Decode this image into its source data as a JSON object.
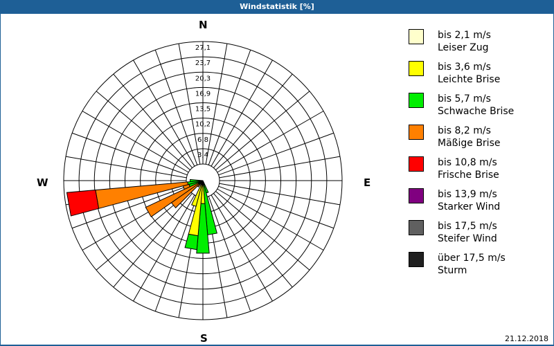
{
  "window": {
    "title": "Windstatistik [%]",
    "date": "21.12.2018"
  },
  "compass": {
    "n": "N",
    "e": "E",
    "s": "S",
    "w": "W"
  },
  "legend": {
    "items": [
      {
        "range": "bis 2,1 m/s",
        "name": "Leiser Zug",
        "color": "#ffffcc"
      },
      {
        "range": "bis 3,6 m/s",
        "name": "Leichte Brise",
        "color": "#ffff00"
      },
      {
        "range": "bis 5,7 m/s",
        "name": "Schwache Brise",
        "color": "#00ee00"
      },
      {
        "range": "bis 8,2 m/s",
        "name": "Mäßige Brise",
        "color": "#ff8000"
      },
      {
        "range": "bis 10,8 m/s",
        "name": "Frische Brise",
        "color": "#ff0000"
      },
      {
        "range": "bis 13,9 m/s",
        "name": "Starker Wind",
        "color": "#800080"
      },
      {
        "range": "bis 17,5 m/s",
        "name": "Steifer Wind",
        "color": "#606060"
      },
      {
        "range": "über 17,5 m/s",
        "name": "Sturm",
        "color": "#202020"
      }
    ]
  },
  "chart_data": {
    "type": "wind-rose",
    "title": "Windstatistik [%]",
    "unit": "%",
    "radial_ticks": [
      "3,4",
      "6,8",
      "10,2",
      "13,5",
      "16,9",
      "20,3",
      "23,7",
      "27,1"
    ],
    "radial_tick_values": [
      3.4,
      6.8,
      10.2,
      13.5,
      16.9,
      20.3,
      23.7,
      27.1
    ],
    "rmax": 27.1,
    "sector_width_deg": 10,
    "directions_labels": [
      "N",
      "E",
      "S",
      "W"
    ],
    "speed_classes": [
      "bis 2,1 m/s",
      "bis 3,6 m/s",
      "bis 5,7 m/s",
      "bis 8,2 m/s",
      "bis 10,8 m/s",
      "bis 13,9 m/s",
      "bis 17,5 m/s",
      "über 17,5 m/s"
    ],
    "sectors": [
      {
        "bearing": 160,
        "segments": [
          {
            "class": 2,
            "from": 0,
            "to": 2.5
          }
        ]
      },
      {
        "bearing": 170,
        "segments": [
          {
            "class": 2,
            "from": 0,
            "to": 10.6
          }
        ]
      },
      {
        "bearing": 180,
        "segments": [
          {
            "class": 1,
            "from": 0,
            "to": 4.5
          },
          {
            "class": 2,
            "from": 4.5,
            "to": 14.2
          }
        ]
      },
      {
        "bearing": 190,
        "segments": [
          {
            "class": 1,
            "from": 0,
            "to": 10.8
          },
          {
            "class": 2,
            "from": 10.8,
            "to": 13.5
          }
        ]
      },
      {
        "bearing": 200,
        "segments": [
          {
            "class": 1,
            "from": 0,
            "to": 5.2
          }
        ]
      },
      {
        "bearing": 220,
        "segments": [
          {
            "class": 3,
            "from": 0,
            "to": 1.5
          }
        ]
      },
      {
        "bearing": 230,
        "segments": [
          {
            "class": 2,
            "from": 0,
            "to": 1.0
          },
          {
            "class": 3,
            "from": 1.0,
            "to": 7.5
          }
        ]
      },
      {
        "bearing": 240,
        "segments": [
          {
            "class": 2,
            "from": 0,
            "to": 1.0
          },
          {
            "class": 3,
            "from": 1.0,
            "to": 12.3
          }
        ]
      },
      {
        "bearing": 250,
        "segments": [
          {
            "class": 2,
            "from": 0,
            "to": 2.8
          },
          {
            "class": 3,
            "from": 2.8,
            "to": 4.0
          }
        ]
      },
      {
        "bearing": 260,
        "segments": [
          {
            "class": 2,
            "from": 0,
            "to": 3.0
          },
          {
            "class": 3,
            "from": 3.0,
            "to": 21.0
          },
          {
            "class": 4,
            "from": 21.0,
            "to": 26.6
          }
        ]
      },
      {
        "bearing": 270,
        "segments": [
          {
            "class": 2,
            "from": 0,
            "to": 2.5
          }
        ]
      }
    ],
    "grid": true,
    "legend_position": "right"
  }
}
